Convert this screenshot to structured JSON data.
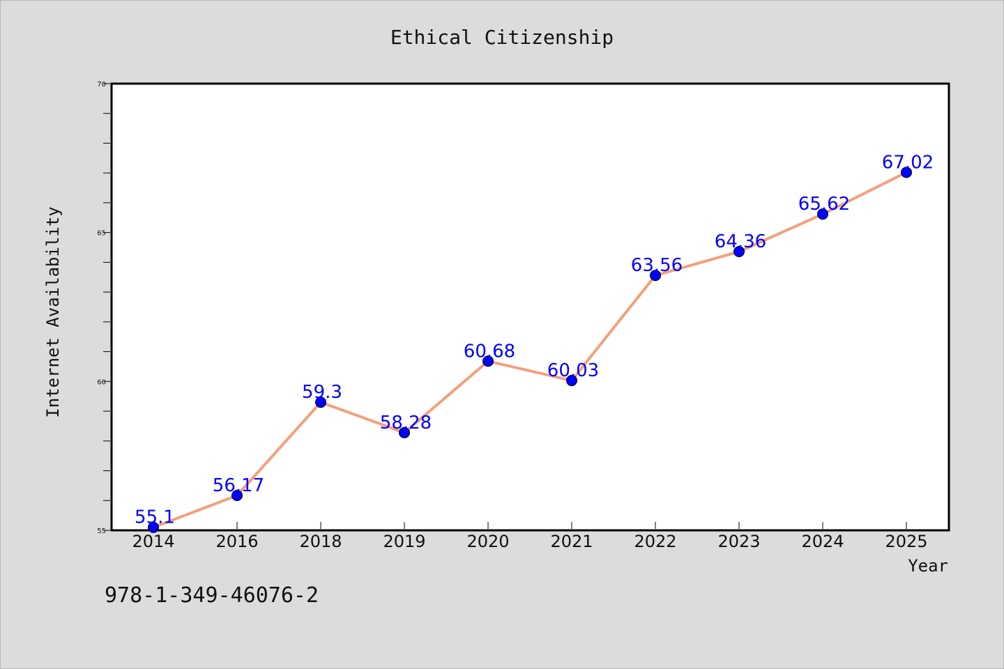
{
  "chart_data": {
    "type": "line",
    "title": "Ethical Citizenship",
    "xlabel": "Year",
    "ylabel": "Internet Availability",
    "categories": [
      "2014",
      "2016",
      "2018",
      "2019",
      "2020",
      "2021",
      "2022",
      "2023",
      "2024",
      "2025"
    ],
    "values": [
      55.1,
      56.17,
      59.3,
      58.28,
      60.68,
      60.03,
      63.56,
      64.36,
      65.62,
      67.02
    ],
    "data_labels": [
      "55.1",
      "56.17",
      "59.3",
      "58.28",
      "60.68",
      "60.03",
      "63.56",
      "64.36",
      "65.62",
      "67.02"
    ],
    "ylim": [
      55,
      70
    ],
    "yticks": [
      55,
      60,
      65,
      70
    ],
    "ytick_labels": [
      "55",
      "60",
      "65",
      "70"
    ],
    "grid": false,
    "legend": "none",
    "line_color": "#f4a07a",
    "marker_color": "#0000ff",
    "label_color": "#0000ff"
  },
  "footer": {
    "isbn": "978-1-349-46076-2"
  }
}
